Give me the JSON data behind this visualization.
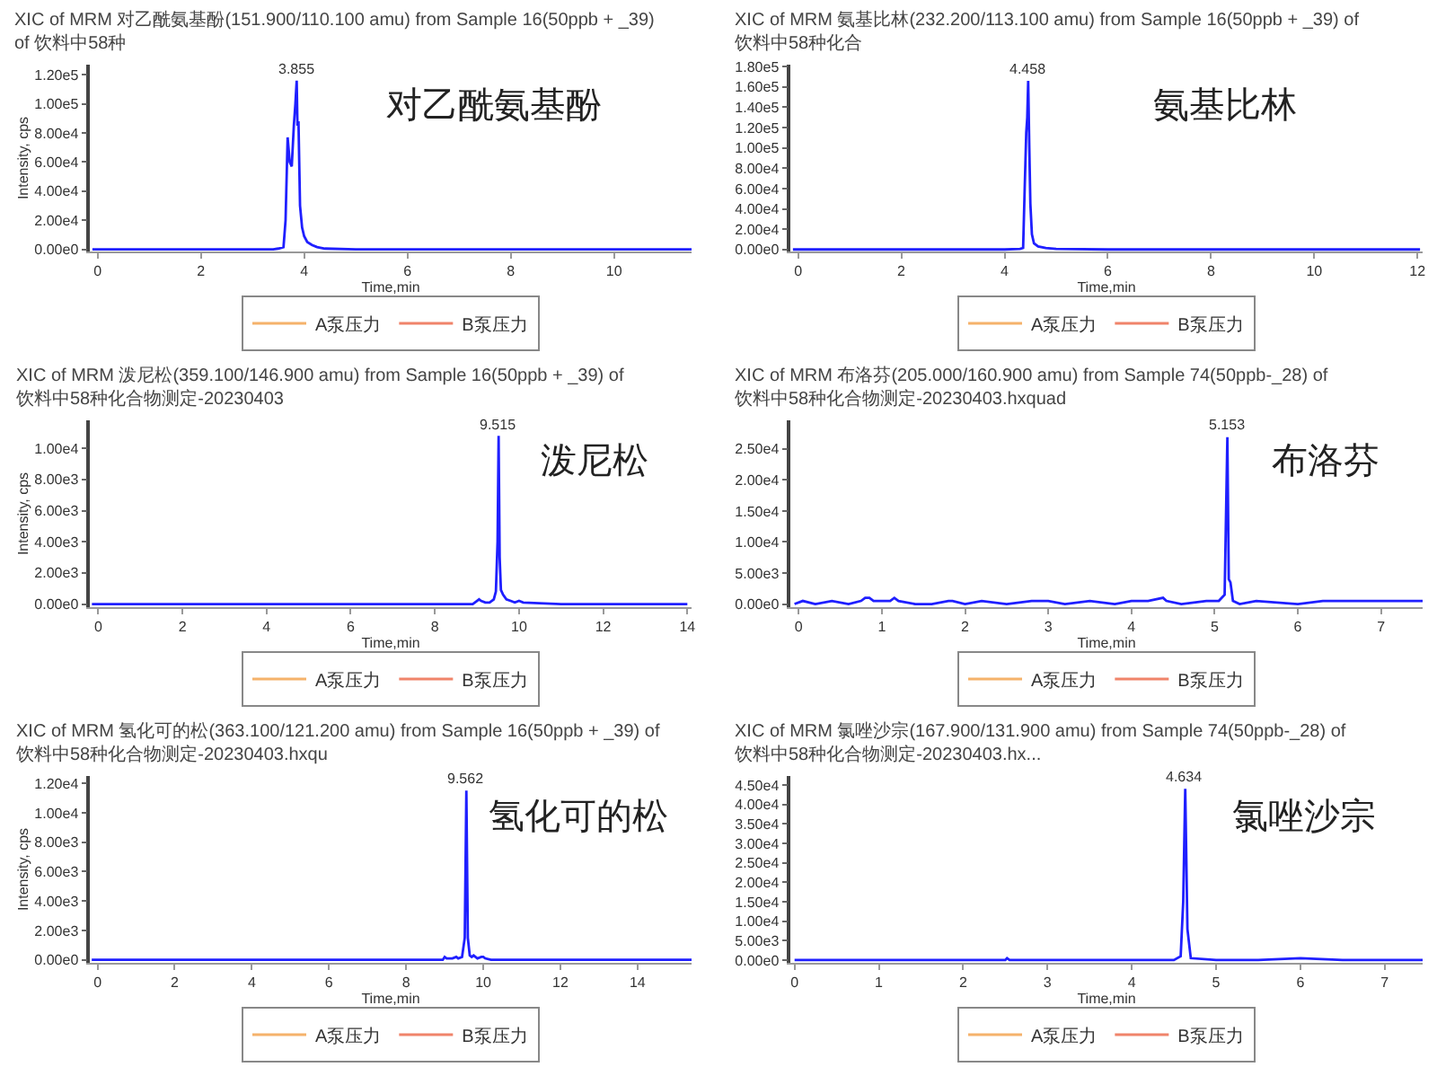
{
  "chart_data": [
    {
      "type": "line",
      "title": "XIC of MRM 对乙酰氨基酚(151.900/110.100 amu) from Sample 16(50ppb + _39) of 饮料中58种",
      "xlabel": "Time,min",
      "ylabel": "Intensity, cps",
      "legend": "bottom",
      "xlim": [
        -0.15,
        11.5
      ],
      "xticks": [
        0,
        2,
        4,
        6,
        8,
        10
      ],
      "ylim": [
        -1500,
        127000
      ],
      "yticks": [
        {
          "value": 0,
          "label": "0.00e0"
        },
        {
          "value": 20000,
          "label": "2.00e4"
        },
        {
          "value": 40000,
          "label": "4.00e4"
        },
        {
          "value": 60000,
          "label": "6.00e4"
        },
        {
          "value": 80000,
          "label": "8.00e4"
        },
        {
          "value": 100000,
          "label": "1.00e5"
        },
        {
          "value": 120000,
          "label": "1.20e5"
        }
      ],
      "series": [
        {
          "color": "#1f1fff",
          "x": [
            -0.1,
            1,
            2,
            3,
            3.4,
            3.5,
            3.6,
            3.64,
            3.68,
            3.72,
            3.76,
            3.8,
            3.83,
            3.855,
            3.87,
            3.89,
            3.92,
            3.96,
            4.0,
            4.06,
            4.15,
            4.25,
            4.4,
            5,
            6,
            8,
            10,
            11.5
          ],
          "values": [
            0,
            0,
            0,
            0,
            0,
            500,
            1500,
            20000,
            77000,
            60000,
            57000,
            85000,
            100000,
            116000,
            85000,
            88000,
            30000,
            15000,
            9000,
            5000,
            3000,
            1500,
            500,
            0,
            0,
            0,
            0,
            0
          ]
        },
        {
          "name": "A泵压力",
          "color": "#f5b26b"
        },
        {
          "name": "B泵压力",
          "color": "#f0846a"
        }
      ],
      "annotations": [
        {
          "text": "3.855",
          "x": 3.855,
          "y": 116000
        },
        "对乙酰氨基酚"
      ]
    },
    {
      "type": "line",
      "title": "XIC of MRM 氨基比林(232.200/113.100 amu) from Sample 16(50ppb + _39) of 饮料中58种化合",
      "xlabel": "Time,min",
      "legend": "bottom",
      "xlim": [
        -0.15,
        12.1
      ],
      "xticks": [
        0,
        2,
        4,
        6,
        8,
        10,
        12
      ],
      "ylim": [
        -2000,
        182000
      ],
      "yticks": [
        {
          "value": 0,
          "label": "0.00e0"
        },
        {
          "value": 20000,
          "label": "2.00e4"
        },
        {
          "value": 40000,
          "label": "4.00e4"
        },
        {
          "value": 60000,
          "label": "6.00e4"
        },
        {
          "value": 80000,
          "label": "8.00e4"
        },
        {
          "value": 100000,
          "label": "1.00e5"
        },
        {
          "value": 120000,
          "label": "1.20e5"
        },
        {
          "value": 140000,
          "label": "1.40e5"
        },
        {
          "value": 160000,
          "label": "1.60e5"
        },
        {
          "value": 180000,
          "label": "1.80e5"
        }
      ],
      "series": [
        {
          "color": "#1f1fff",
          "x": [
            -0.1,
            2,
            4,
            4.3,
            4.36,
            4.39,
            4.42,
            4.44,
            4.458,
            4.48,
            4.5,
            4.53,
            4.57,
            4.65,
            4.8,
            5,
            6,
            8,
            10,
            12.05
          ],
          "values": [
            0,
            0,
            0,
            500,
            1500,
            60000,
            115000,
            130000,
            166000,
            100000,
            45000,
            15000,
            6000,
            3000,
            1500,
            500,
            0,
            0,
            0,
            0
          ]
        },
        {
          "name": "A泵压力",
          "color": "#f5b26b"
        },
        {
          "name": "B泵压力",
          "color": "#f0846a"
        }
      ],
      "annotations": [
        {
          "text": "4.458",
          "x": 4.458,
          "y": 166000
        },
        "氨基比林"
      ]
    },
    {
      "type": "line",
      "title": "XIC of MRM 泼尼松(359.100/146.900 amu) from Sample 16(50ppb + _39) of 饮料中58种化合物测定-20230403",
      "xlabel": "Time,min",
      "ylabel": "Intensity, cps",
      "legend": "bottom",
      "xlim": [
        -0.2,
        14.1
      ],
      "xticks": [
        0,
        2,
        4,
        6,
        8,
        10,
        12,
        14
      ],
      "ylim": [
        -200,
        11800
      ],
      "yticks": [
        {
          "value": 0,
          "label": "0.00e0"
        },
        {
          "value": 2000,
          "label": "2.00e3"
        },
        {
          "value": 4000,
          "label": "4.00e3"
        },
        {
          "value": 6000,
          "label": "6.00e3"
        },
        {
          "value": 8000,
          "label": "8.00e3"
        },
        {
          "value": 10000,
          "label": "1.00e4"
        }
      ],
      "series": [
        {
          "color": "#1f1fff",
          "x": [
            -0.15,
            2,
            4,
            6,
            8,
            8.9,
            9.0,
            9.05,
            9.1,
            9.2,
            9.3,
            9.4,
            9.45,
            9.49,
            9.515,
            9.54,
            9.57,
            9.62,
            9.7,
            9.8,
            9.9,
            10.0,
            10.1,
            11,
            12,
            14
          ],
          "values": [
            0,
            0,
            0,
            0,
            0,
            0,
            200,
            300,
            200,
            100,
            100,
            300,
            800,
            4000,
            10800,
            3000,
            900,
            600,
            300,
            200,
            100,
            200,
            100,
            0,
            0,
            0
          ]
        },
        {
          "name": "A泵压力",
          "color": "#f5b26b"
        },
        {
          "name": "B泵压力",
          "color": "#f0846a"
        }
      ],
      "annotations": [
        {
          "text": "9.515",
          "x": 9.515,
          "y": 10800
        },
        "泼尼松"
      ]
    },
    {
      "type": "line",
      "title": "XIC of MRM 布洛芬(205.000/160.900 amu) from Sample 74(50ppb-_28) of 饮料中58种化合物测定-20230403.hxquad",
      "xlabel": "Time,min",
      "legend": "bottom",
      "xlim": [
        -0.1,
        7.5
      ],
      "xticks": [
        0,
        1,
        2,
        3,
        4,
        5,
        6,
        7
      ],
      "ylim": [
        -500,
        29600
      ],
      "yticks": [
        {
          "value": 0,
          "label": "0.00e0"
        },
        {
          "value": 5000,
          "label": "5.00e3"
        },
        {
          "value": 10000,
          "label": "1.00e4"
        },
        {
          "value": 15000,
          "label": "1.50e4"
        },
        {
          "value": 20000,
          "label": "2.00e4"
        },
        {
          "value": 25000,
          "label": "2.50e4"
        }
      ],
      "series": [
        {
          "color": "#1f1fff",
          "x": [
            -0.05,
            0.05,
            0.2,
            0.4,
            0.6,
            0.75,
            0.8,
            0.85,
            0.9,
            1.0,
            1.1,
            1.15,
            1.2,
            1.4,
            1.6,
            1.8,
            1.85,
            2.0,
            2.2,
            2.5,
            2.8,
            3.0,
            3.2,
            3.5,
            3.8,
            4.0,
            4.2,
            4.38,
            4.42,
            4.6,
            4.9,
            5.05,
            5.12,
            5.153,
            5.17,
            5.19,
            5.22,
            5.3,
            5.5,
            6.0,
            6.3,
            6.5,
            7.0,
            7.5
          ],
          "values": [
            0,
            500,
            0,
            500,
            0,
            500,
            1000,
            1000,
            500,
            500,
            500,
            1000,
            500,
            0,
            0,
            500,
            500,
            0,
            500,
            0,
            500,
            500,
            0,
            500,
            0,
            500,
            500,
            1000,
            500,
            0,
            500,
            500,
            1500,
            26900,
            4000,
            3500,
            500,
            0,
            500,
            0,
            500,
            500,
            500,
            500
          ]
        },
        {
          "name": "A泵压力",
          "color": "#f5b26b"
        },
        {
          "name": "B泵压力",
          "color": "#f0846a"
        }
      ],
      "annotations": [
        {
          "text": "5.153",
          "x": 5.153,
          "y": 26900
        },
        "布洛芬"
      ]
    },
    {
      "type": "line",
      "title": "XIC of MRM 氢化可的松(363.100/121.200 amu) from Sample 16(50ppb + _39) of 饮料中58种化合物测定-20230403.hxqu",
      "xlabel": "Time,min",
      "ylabel": "Intensity, cps",
      "legend": "bottom",
      "xlim": [
        -0.2,
        15.4
      ],
      "xticks": [
        0,
        2,
        4,
        6,
        8,
        10,
        12,
        14
      ],
      "ylim": [
        -200,
        12500
      ],
      "yticks": [
        {
          "value": 0,
          "label": "0.00e0"
        },
        {
          "value": 2000,
          "label": "2.00e3"
        },
        {
          "value": 4000,
          "label": "4.00e3"
        },
        {
          "value": 6000,
          "label": "6.00e3"
        },
        {
          "value": 8000,
          "label": "8.00e3"
        },
        {
          "value": 10000,
          "label": "1.00e4"
        },
        {
          "value": 12000,
          "label": "1.20e4"
        }
      ],
      "series": [
        {
          "color": "#1f1fff",
          "x": [
            -0.15,
            2,
            4,
            6,
            8,
            8.95,
            9.0,
            9.05,
            9.2,
            9.3,
            9.35,
            9.45,
            9.52,
            9.562,
            9.6,
            9.65,
            9.7,
            9.75,
            9.85,
            9.95,
            10.0,
            10.05,
            10.2,
            12,
            14,
            15.4
          ],
          "values": [
            0,
            0,
            0,
            0,
            0,
            0,
            200,
            100,
            100,
            200,
            100,
            200,
            1500,
            11500,
            1500,
            300,
            200,
            300,
            100,
            200,
            200,
            100,
            0,
            0,
            0,
            0
          ]
        },
        {
          "name": "A泵压力",
          "color": "#f5b26b"
        },
        {
          "name": "B泵压力",
          "color": "#f0846a"
        }
      ],
      "annotations": [
        {
          "text": "9.562",
          "x": 9.562,
          "y": 11500
        },
        "氢化可的松"
      ]
    },
    {
      "type": "line",
      "title": "XIC of MRM 氯唑沙宗(167.900/131.900 amu) from Sample 74(50ppb-_28) of 饮料中58种化合物测定-20230403.hx...",
      "xlabel": "Time,min",
      "legend": "bottom",
      "xlim": [
        -0.05,
        7.45
      ],
      "xticks": [
        0,
        1,
        2,
        3,
        4,
        5,
        6,
        7
      ],
      "ylim": [
        -700,
        47300
      ],
      "yticks": [
        {
          "value": 0,
          "label": "0.00e0"
        },
        {
          "value": 5000,
          "label": "5.00e3"
        },
        {
          "value": 10000,
          "label": "1.00e4"
        },
        {
          "value": 15000,
          "label": "1.50e4"
        },
        {
          "value": 20000,
          "label": "2.00e4"
        },
        {
          "value": 25000,
          "label": "2.50e4"
        },
        {
          "value": 30000,
          "label": "3.00e4"
        },
        {
          "value": 35000,
          "label": "3.50e4"
        },
        {
          "value": 40000,
          "label": "4.00e4"
        },
        {
          "value": 45000,
          "label": "4.50e4"
        }
      ],
      "series": [
        {
          "color": "#1f1fff",
          "x": [
            0,
            0.5,
            1,
            1.5,
            2,
            2.5,
            2.52,
            2.55,
            3,
            3.5,
            4,
            4.5,
            4.58,
            4.61,
            4.634,
            4.66,
            4.7,
            5,
            5.5,
            6,
            6.5,
            7,
            7.45
          ],
          "values": [
            0,
            0,
            0,
            0,
            0,
            0,
            500,
            0,
            0,
            0,
            0,
            0,
            1000,
            15000,
            44000,
            8000,
            500,
            0,
            0,
            500,
            0,
            0,
            0
          ]
        },
        {
          "name": "A泵压力",
          "color": "#f5b26b"
        },
        {
          "name": "B泵压力",
          "color": "#f0846a"
        }
      ],
      "annotations": [
        {
          "text": "4.634",
          "x": 4.634,
          "y": 44000
        },
        "氯唑沙宗"
      ]
    }
  ]
}
